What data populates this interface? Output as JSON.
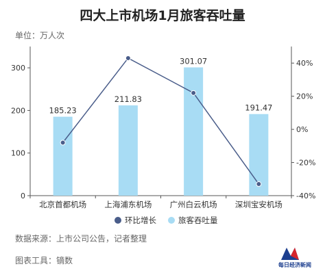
{
  "header": {
    "title": "四大上市机场1月旅客吞吐量",
    "unit": "单位：万人次"
  },
  "footer": {
    "source": "数据来源：上市公司公告，记者整理",
    "tool": "图表工具：镝数",
    "logo_text": "每日经济新闻"
  },
  "colors": {
    "bar": "#a8dcf4",
    "line": "#4a5d8a",
    "axis": "#555555",
    "text": "#333333"
  },
  "chart_data": {
    "type": "bar",
    "title": "四大上市机场1月旅客吞吐量",
    "categories": [
      "北京首都机场",
      "上海浦东机场",
      "广州白云机场",
      "深圳宝安机场"
    ],
    "series": [
      {
        "name": "旅客吞吐量",
        "type": "bar",
        "axis": "left",
        "values": [
          185.23,
          211.83,
          301.07,
          191.47
        ],
        "labels": [
          "185.23",
          "211.83",
          "301.07",
          "191.47"
        ]
      },
      {
        "name": "环比增长",
        "type": "line",
        "axis": "right",
        "values": [
          -8,
          43,
          22,
          -33
        ]
      }
    ],
    "y_left": {
      "min": 0,
      "max": 350,
      "ticks": [
        0,
        100,
        200,
        300
      ],
      "tick_labels": [
        "0",
        "100",
        "200",
        "300"
      ]
    },
    "y_right": {
      "min": -40,
      "max": 50,
      "ticks": [
        -40,
        -20,
        0,
        20,
        40
      ],
      "tick_labels": [
        "-40%",
        "-20%",
        "0%",
        "20%",
        "40%"
      ]
    },
    "legend": [
      {
        "name": "环比增长",
        "marker": "circle",
        "color": "#4a5d8a"
      },
      {
        "name": "旅客吞吐量",
        "marker": "circle",
        "color": "#a8dcf4"
      }
    ],
    "legend_position": "bottom",
    "grid": false
  }
}
